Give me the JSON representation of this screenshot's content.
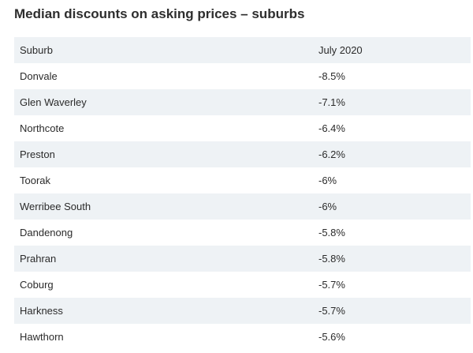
{
  "colors": {
    "shaded_row": "#eef2f5",
    "text": "#2b2b2b",
    "title": "#2e2e2e"
  },
  "chart_data": {
    "type": "table",
    "title": "Median discounts on asking prices – suburbs",
    "columns": [
      "Suburb",
      "July 2020"
    ],
    "rows": [
      {
        "suburb": "Donvale",
        "value": "-8.5%"
      },
      {
        "suburb": "Glen Waverley",
        "value": "-7.1%"
      },
      {
        "suburb": "Northcote",
        "value": "-6.4%"
      },
      {
        "suburb": "Preston",
        "value": "-6.2%"
      },
      {
        "suburb": "Toorak",
        "value": "-6%"
      },
      {
        "suburb": "Werribee South",
        "value": "-6%"
      },
      {
        "suburb": "Dandenong",
        "value": "-5.8%"
      },
      {
        "suburb": "Prahran",
        "value": "-5.8%"
      },
      {
        "suburb": "Coburg",
        "value": "-5.7%"
      },
      {
        "suburb": "Harkness",
        "value": "-5.7%"
      },
      {
        "suburb": "Hawthorn",
        "value": "-5.6%"
      }
    ]
  }
}
